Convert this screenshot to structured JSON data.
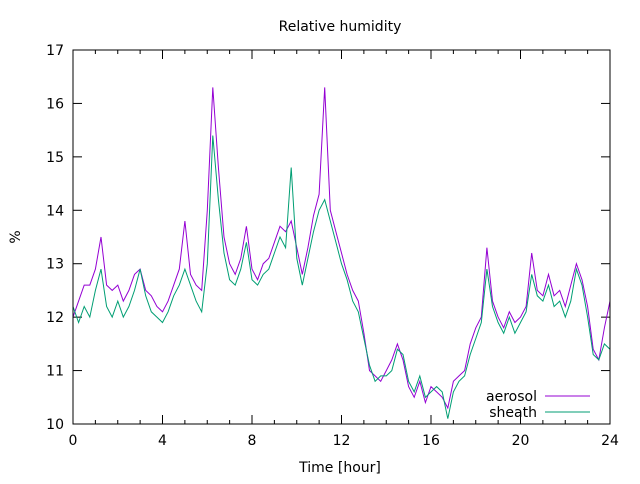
{
  "chart_data": {
    "type": "line",
    "title": "Relative humidity",
    "xlabel": "Time [hour]",
    "ylabel": "%",
    "xlim": [
      0,
      24
    ],
    "ylim": [
      10,
      17
    ],
    "xticks": [
      0,
      4,
      8,
      12,
      16,
      20,
      24
    ],
    "xtick_labels": [
      "0",
      "4",
      "8",
      "12",
      "16",
      "20",
      "24"
    ],
    "xminor_step": 1,
    "yticks": [
      10,
      11,
      12,
      13,
      14,
      15,
      16,
      17
    ],
    "ytick_labels": [
      "10",
      "11",
      "12",
      "13",
      "14",
      "15",
      "16",
      "17"
    ],
    "grid": false,
    "legend_position": "bottom-right",
    "x_start": 0,
    "x_step": 0.25,
    "series": [
      {
        "name": "aerosol",
        "color": "#9400d3",
        "values": [
          12.0,
          12.3,
          12.6,
          12.6,
          12.9,
          13.5,
          12.6,
          12.5,
          12.6,
          12.3,
          12.5,
          12.8,
          12.9,
          12.5,
          12.4,
          12.2,
          12.1,
          12.3,
          12.6,
          12.9,
          13.8,
          12.8,
          12.6,
          12.5,
          14.0,
          16.3,
          14.8,
          13.5,
          13.0,
          12.8,
          13.1,
          13.7,
          12.9,
          12.7,
          13.0,
          13.1,
          13.4,
          13.7,
          13.6,
          13.8,
          13.3,
          12.8,
          13.3,
          13.9,
          14.3,
          16.3,
          14.0,
          13.6,
          13.2,
          12.8,
          12.5,
          12.3,
          11.7,
          11.0,
          10.9,
          10.8,
          11.0,
          11.2,
          11.5,
          11.2,
          10.7,
          10.5,
          10.8,
          10.4,
          10.7,
          10.6,
          10.5,
          10.3,
          10.8,
          10.9,
          11.0,
          11.5,
          11.8,
          12.0,
          13.3,
          12.3,
          12.0,
          11.8,
          12.1,
          11.9,
          12.0,
          12.2,
          13.2,
          12.5,
          12.4,
          12.8,
          12.4,
          12.5,
          12.2,
          12.6,
          13.0,
          12.7,
          12.2,
          11.4,
          11.2,
          11.8,
          12.3
        ]
      },
      {
        "name": "sheath",
        "color": "#009e73",
        "values": [
          12.2,
          11.9,
          12.2,
          12.0,
          12.5,
          12.9,
          12.2,
          12.0,
          12.3,
          12.0,
          12.2,
          12.5,
          12.9,
          12.4,
          12.1,
          12.0,
          11.9,
          12.1,
          12.4,
          12.6,
          12.9,
          12.6,
          12.3,
          12.1,
          13.0,
          15.4,
          14.2,
          13.2,
          12.7,
          12.6,
          12.9,
          13.4,
          12.7,
          12.6,
          12.8,
          12.9,
          13.2,
          13.5,
          13.3,
          14.8,
          13.1,
          12.6,
          13.1,
          13.6,
          14.0,
          14.2,
          13.8,
          13.4,
          13.0,
          12.7,
          12.3,
          12.1,
          11.6,
          11.1,
          10.8,
          10.9,
          10.9,
          11.0,
          11.4,
          11.3,
          10.8,
          10.6,
          10.9,
          10.5,
          10.6,
          10.7,
          10.6,
          10.1,
          10.6,
          10.8,
          10.9,
          11.3,
          11.6,
          11.9,
          12.9,
          12.2,
          11.9,
          11.7,
          12.0,
          11.7,
          11.9,
          12.1,
          12.8,
          12.4,
          12.3,
          12.6,
          12.2,
          12.3,
          12.0,
          12.3,
          12.9,
          12.6,
          12.0,
          11.3,
          11.2,
          11.5,
          11.4
        ]
      }
    ]
  }
}
